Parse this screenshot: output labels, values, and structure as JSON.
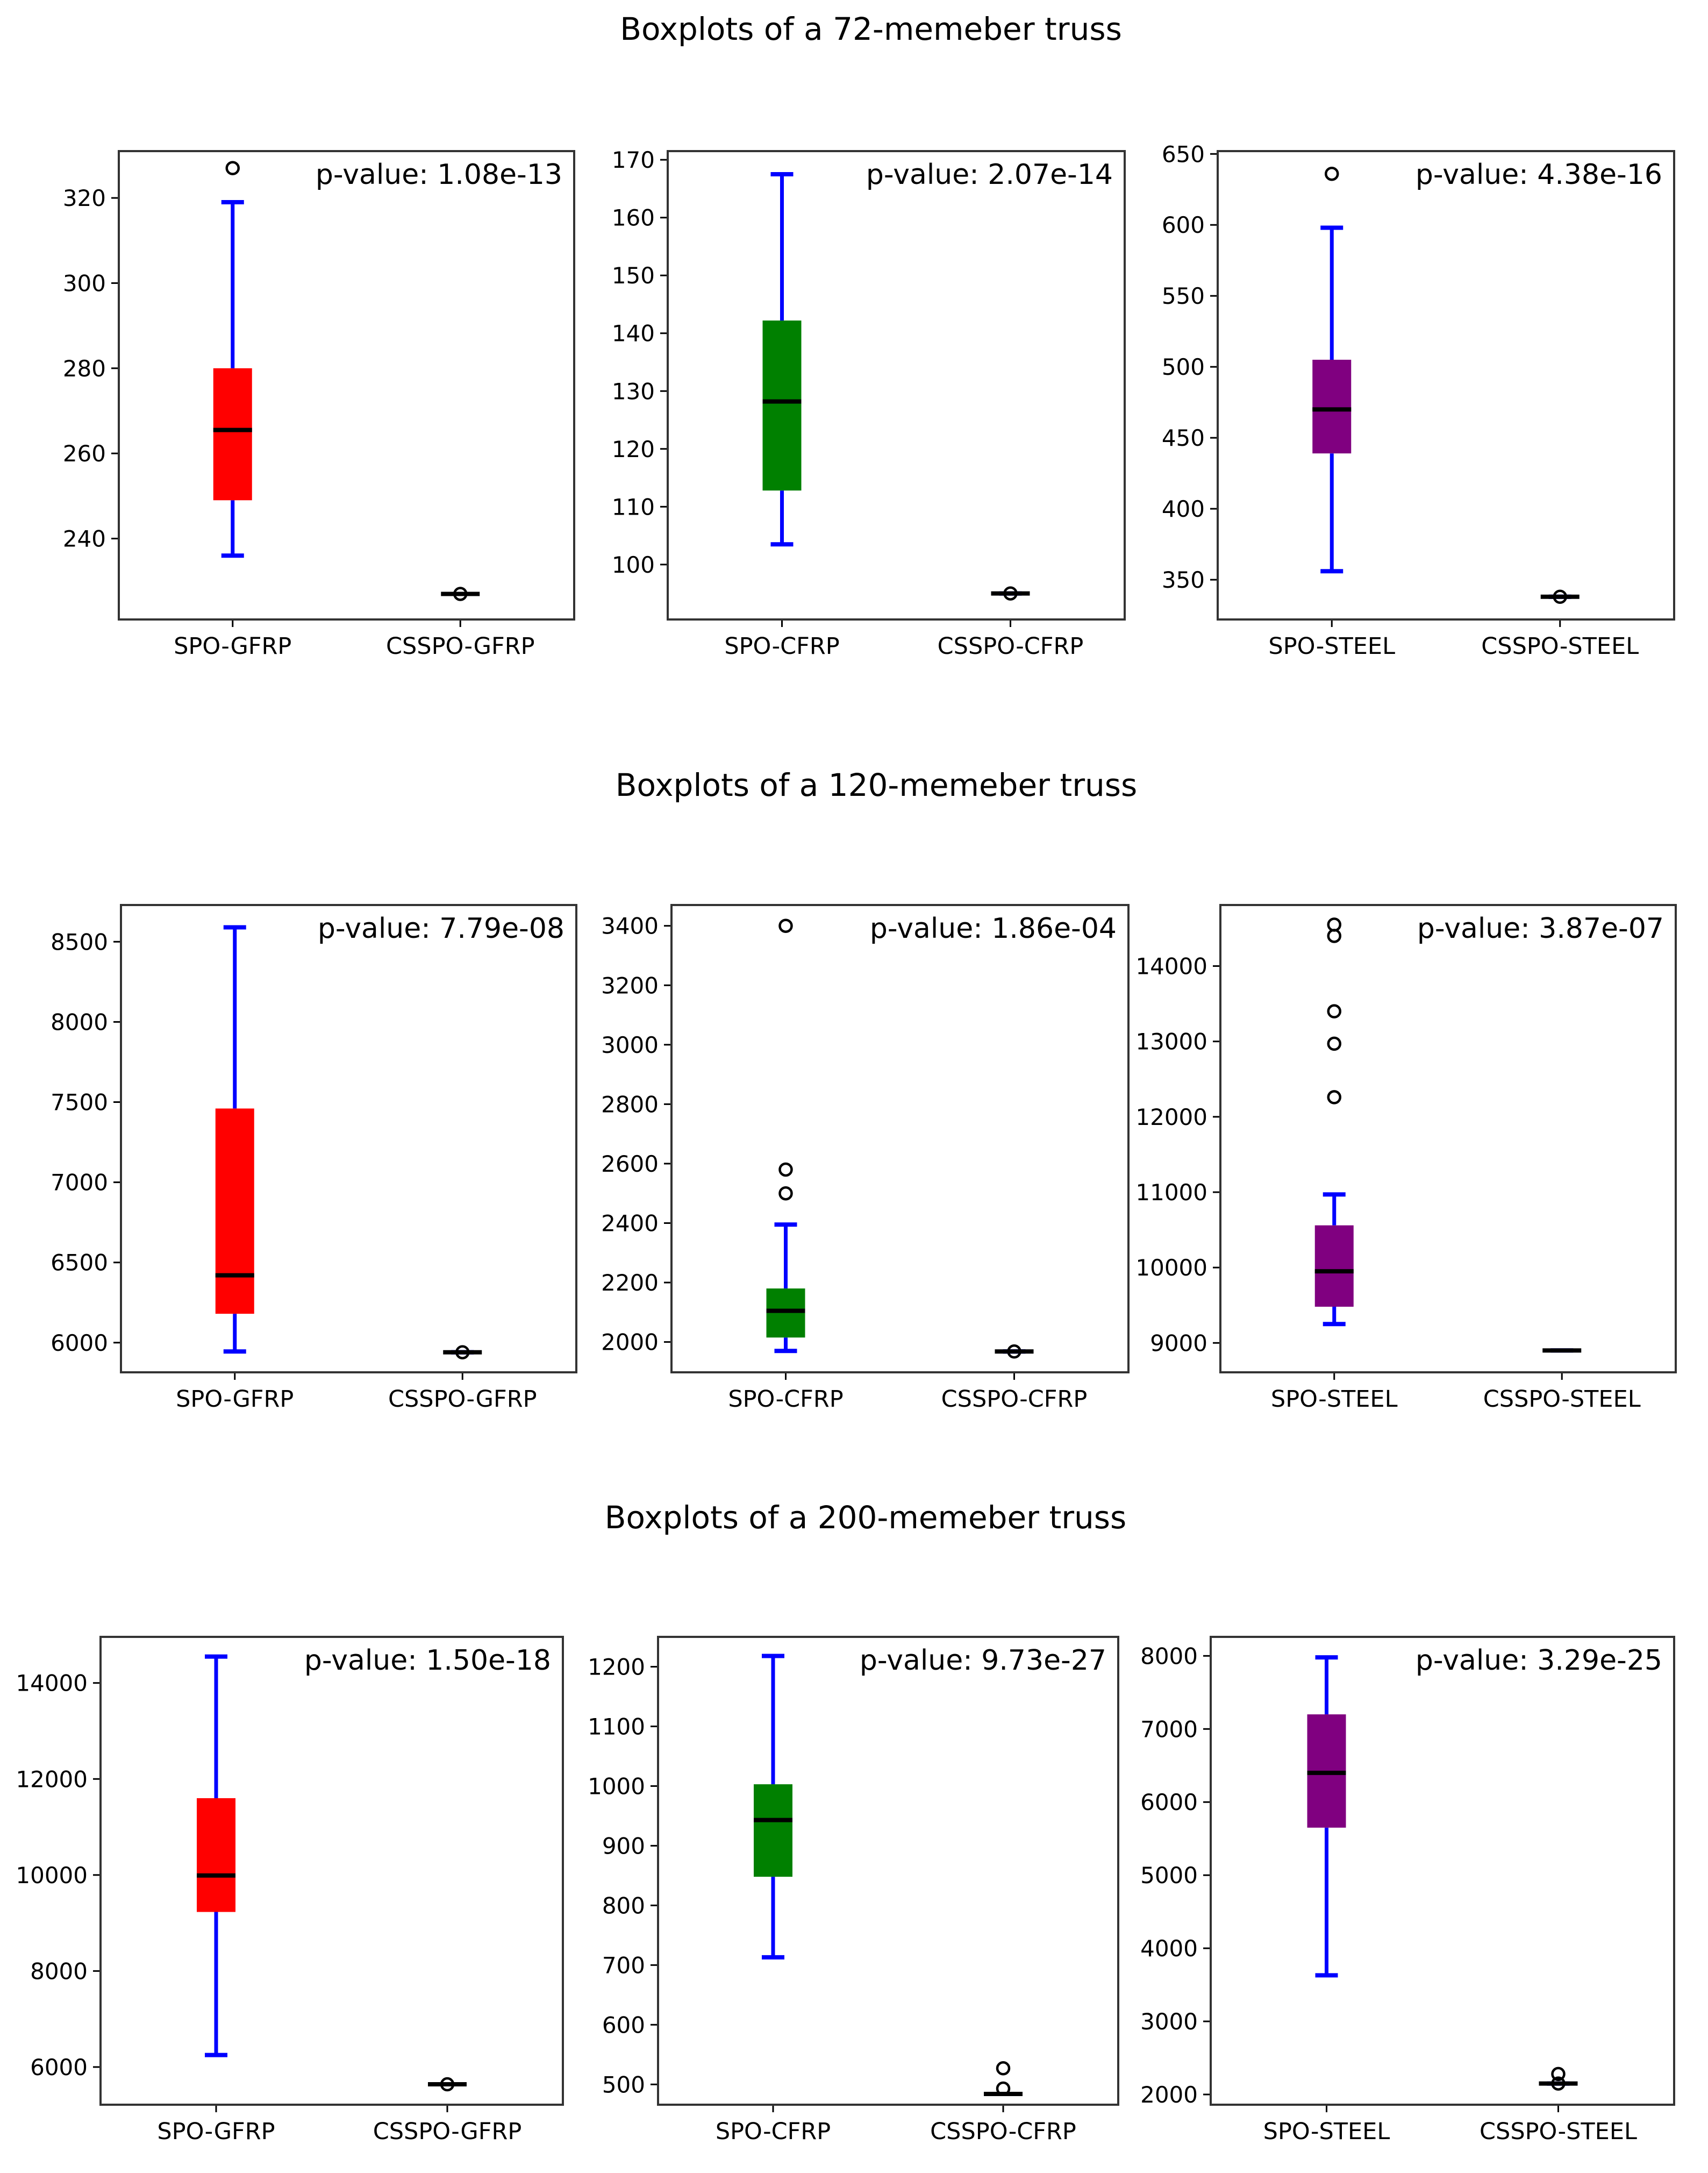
{
  "chart_data": [
    {
      "section_title": "Boxplots of a 72-memeber truss",
      "panels": [
        {
          "type": "boxplot",
          "ylim": [
            221,
            331
          ],
          "yticks": [
            "240",
            "260",
            "280",
            "300",
            "320"
          ],
          "p_value": "p-value: 1.08e-13",
          "box_color": "#ff0000",
          "categories": [
            "SPO-GFRP",
            "CSSPO-GFRP"
          ],
          "boxes": [
            {
              "whislo": 236,
              "q1": 249,
              "med": 265.5,
              "q3": 280,
              "whishi": 319,
              "fliers": [
                327
              ]
            },
            {
              "whislo": 227,
              "q1": 227,
              "med": 227,
              "q3": 227,
              "whishi": 227,
              "fliers": [
                227
              ]
            }
          ]
        },
        {
          "type": "boxplot",
          "ylim": [
            90.5,
            171.5
          ],
          "yticks": [
            "100",
            "110",
            "120",
            "130",
            "140",
            "150",
            "160",
            "170"
          ],
          "p_value": "p-value: 2.07e-14",
          "box_color": "#008000",
          "categories": [
            "SPO-CFRP",
            "CSSPO-CFRP"
          ],
          "boxes": [
            {
              "whislo": 103.5,
              "q1": 112.8,
              "med": 128.2,
              "q3": 142.2,
              "whishi": 167.5,
              "fliers": []
            },
            {
              "whislo": 95,
              "q1": 95,
              "med": 95,
              "q3": 95,
              "whishi": 95,
              "fliers": [
                95
              ]
            }
          ]
        },
        {
          "type": "boxplot",
          "ylim": [
            322,
            652
          ],
          "yticks": [
            "350",
            "400",
            "450",
            "500",
            "550",
            "600",
            "650"
          ],
          "p_value": "p-value: 4.38e-16",
          "box_color": "#800080",
          "categories": [
            "SPO-STEEL",
            "CSSPO-STEEL"
          ],
          "boxes": [
            {
              "whislo": 356,
              "q1": 439,
              "med": 470,
              "q3": 505,
              "whishi": 598,
              "fliers": [
                636
              ]
            },
            {
              "whislo": 338,
              "q1": 338,
              "med": 338,
              "q3": 338,
              "whishi": 338,
              "fliers": [
                338
              ]
            }
          ]
        }
      ]
    },
    {
      "section_title": "Boxplots of a 120-memeber truss",
      "panels": [
        {
          "type": "boxplot",
          "ylim": [
            5815,
            8729
          ],
          "yticks": [
            "6000",
            "6500",
            "7000",
            "7500",
            "8000",
            "8500"
          ],
          "p_value": "p-value: 7.79e-08",
          "box_color": "#ff0000",
          "categories": [
            "SPO-GFRP",
            "CSSPO-GFRP"
          ],
          "boxes": [
            {
              "whislo": 5945,
              "q1": 6180,
              "med": 6420,
              "q3": 7460,
              "whishi": 8590,
              "fliers": []
            },
            {
              "whislo": 5940,
              "q1": 5940,
              "med": 5940,
              "q3": 5940,
              "whishi": 5940,
              "fliers": [
                5940
              ]
            }
          ]
        },
        {
          "type": "boxplot",
          "ylim": [
            1898,
            3470
          ],
          "yticks": [
            "2000",
            "2200",
            "2400",
            "2600",
            "2800",
            "3000",
            "3200",
            "3400"
          ],
          "p_value": "p-value: 1.86e-04",
          "box_color": "#008000",
          "categories": [
            "SPO-CFRP",
            "CSSPO-CFRP"
          ],
          "boxes": [
            {
              "whislo": 1970,
              "q1": 2015,
              "med": 2105,
              "q3": 2180,
              "whishi": 2395,
              "fliers": [
                2500,
                2580,
                3400
              ]
            },
            {
              "whislo": 1968,
              "q1": 1968,
              "med": 1968,
              "q3": 1968,
              "whishi": 1968,
              "fliers": [
                1968
              ]
            }
          ]
        },
        {
          "type": "boxplot",
          "ylim": [
            8610,
            14810
          ],
          "yticks": [
            "9000",
            "10000",
            "11000",
            "12000",
            "13000",
            "14000"
          ],
          "p_value": "p-value: 3.87e-07",
          "box_color": "#800080",
          "categories": [
            "SPO-STEEL",
            "CSSPO-STEEL"
          ],
          "boxes": [
            {
              "whislo": 9250,
              "q1": 9480,
              "med": 9950,
              "q3": 10560,
              "whishi": 10970,
              "fliers": [
                12260,
                12970,
                13400,
                14400,
                14550
              ]
            },
            {
              "whislo": 8900,
              "q1": 8900,
              "med": 8900,
              "q3": 8900,
              "whishi": 8900,
              "fliers": []
            }
          ]
        }
      ]
    },
    {
      "section_title": "Boxplots of a 200-memeber truss",
      "panels": [
        {
          "type": "boxplot",
          "ylim": [
            5215,
            14960
          ],
          "yticks": [
            "6000",
            "8000",
            "10000",
            "12000",
            "14000"
          ],
          "p_value": "p-value: 1.50e-18",
          "box_color": "#ff0000",
          "categories": [
            "SPO-GFRP",
            "CSSPO-GFRP"
          ],
          "boxes": [
            {
              "whislo": 6250,
              "q1": 9230,
              "med": 9990,
              "q3": 11600,
              "whishi": 14550,
              "fliers": []
            },
            {
              "whislo": 5640,
              "q1": 5640,
              "med": 5640,
              "q3": 5640,
              "whishi": 5640,
              "fliers": [
                5640
              ]
            }
          ]
        },
        {
          "type": "boxplot",
          "ylim": [
            466,
            1250
          ],
          "yticks": [
            "500",
            "600",
            "700",
            "800",
            "900",
            "1000",
            "1100",
            "1200"
          ],
          "p_value": "p-value: 9.73e-27",
          "box_color": "#008000",
          "categories": [
            "SPO-CFRP",
            "CSSPO-CFRP"
          ],
          "boxes": [
            {
              "whislo": 713,
              "q1": 848,
              "med": 943,
              "q3": 1003,
              "whishi": 1218,
              "fliers": []
            },
            {
              "whislo": 484,
              "q1": 484,
              "med": 484,
              "q3": 484,
              "whishi": 484,
              "fliers": [
                493,
                527
              ]
            }
          ]
        },
        {
          "type": "boxplot",
          "ylim": [
            1860,
            8260
          ],
          "yticks": [
            "2000",
            "3000",
            "4000",
            "5000",
            "6000",
            "7000",
            "8000"
          ],
          "p_value": "p-value: 3.29e-25",
          "box_color": "#800080",
          "categories": [
            "SPO-STEEL",
            "CSSPO-STEEL"
          ],
          "boxes": [
            {
              "whislo": 3630,
              "q1": 5650,
              "med": 6400,
              "q3": 7200,
              "whishi": 7980,
              "fliers": []
            },
            {
              "whislo": 2150,
              "q1": 2150,
              "med": 2150,
              "q3": 2150,
              "whishi": 2150,
              "fliers": [
                2150,
                2280
              ]
            }
          ]
        }
      ]
    }
  ]
}
